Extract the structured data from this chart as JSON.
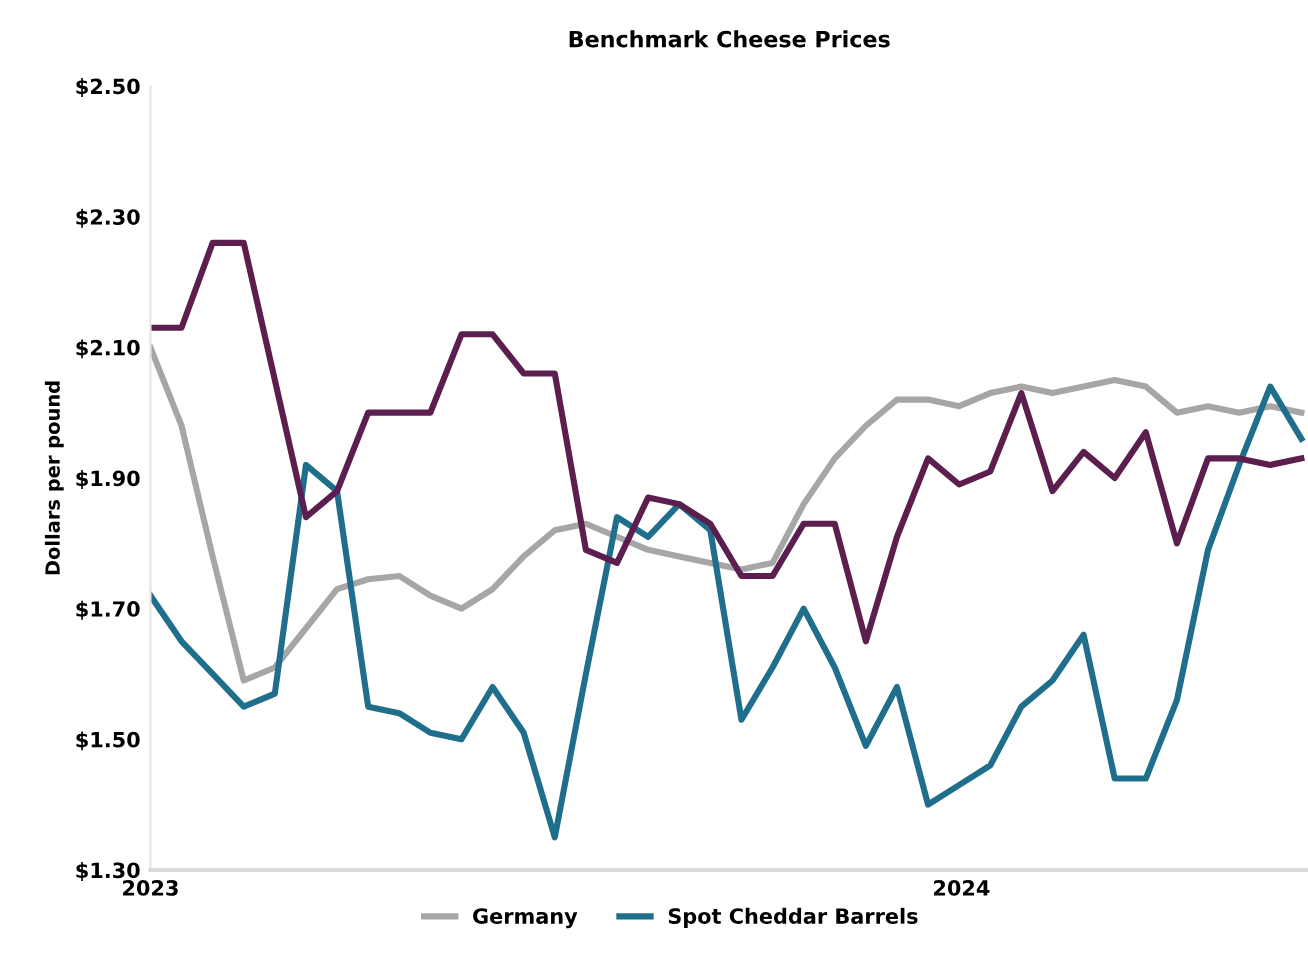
{
  "chart_data": {
    "type": "line",
    "title": "Benchmark Cheese Prices",
    "ylabel": "Dollars per pound",
    "x": [
      "2023-01-01",
      "2023-01-15",
      "2023-01-29",
      "2023-02-12",
      "2023-02-26",
      "2023-03-12",
      "2023-03-26",
      "2023-04-09",
      "2023-04-23",
      "2023-05-07",
      "2023-05-21",
      "2023-06-04",
      "2023-06-18",
      "2023-07-02",
      "2023-07-16",
      "2023-07-30",
      "2023-08-13",
      "2023-08-27",
      "2023-09-10",
      "2023-09-24",
      "2023-10-08",
      "2023-10-22",
      "2023-11-05",
      "2023-11-19",
      "2023-12-03",
      "2023-12-17",
      "2023-12-31",
      "2024-01-14",
      "2024-01-28",
      "2024-02-11",
      "2024-02-25",
      "2024-03-10",
      "2024-03-24",
      "2024-04-07",
      "2024-04-21",
      "2024-05-05",
      "2024-05-19",
      "2024-06-02"
    ],
    "series": [
      {
        "name": "Germany",
        "color": "#a6a6a6",
        "values": [
          2.1,
          1.98,
          1.78,
          1.59,
          1.61,
          1.67,
          1.73,
          1.745,
          1.75,
          1.72,
          1.7,
          1.73,
          1.78,
          1.82,
          1.83,
          1.81,
          1.79,
          1.78,
          1.77,
          1.76,
          1.77,
          1.86,
          1.93,
          1.98,
          2.02,
          2.02,
          2.01,
          2.03,
          2.04,
          2.03,
          2.04,
          2.05,
          2.04,
          2.0,
          2.01,
          2.0,
          2.01,
          2.0
        ]
      },
      {
        "name": "Spot Cheddar Barrels",
        "color": "#1f6e8c",
        "values": [
          1.72,
          1.65,
          1.6,
          1.55,
          1.57,
          1.92,
          1.88,
          1.55,
          1.54,
          1.51,
          1.5,
          1.58,
          1.51,
          1.35,
          1.6,
          1.84,
          1.81,
          1.86,
          1.82,
          1.53,
          1.61,
          1.7,
          1.61,
          1.49,
          1.58,
          1.4,
          1.43,
          1.46,
          1.55,
          1.59,
          1.66,
          1.44,
          1.44,
          1.56,
          1.79,
          1.92,
          2.04,
          1.96
        ]
      },
      {
        "color": "#5b1e4e",
        "values": [
          2.13,
          2.13,
          2.26,
          2.26,
          2.05,
          1.84,
          1.88,
          2.0,
          2.0,
          2.0,
          2.12,
          2.12,
          2.06,
          2.06,
          1.79,
          1.77,
          1.87,
          1.86,
          1.83,
          1.75,
          1.75,
          1.83,
          1.83,
          1.65,
          1.81,
          1.93,
          1.89,
          1.91,
          2.03,
          1.88,
          1.94,
          1.9,
          1.97,
          1.8,
          1.93,
          1.93,
          1.92,
          1.93
        ]
      }
    ],
    "xlim": [
      "2023-01-01",
      "2024-06-05"
    ],
    "xticks": [
      {
        "value": "2023-01-01",
        "label": "2023"
      },
      {
        "value": "2024-01-01",
        "label": "2024"
      }
    ],
    "ylim": [
      1.3,
      2.5
    ],
    "yticks": [
      {
        "value": 1.3,
        "label": "$1.30"
      },
      {
        "value": 1.5,
        "label": "$1.50"
      },
      {
        "value": 1.7,
        "label": "$1.70"
      },
      {
        "value": 1.9,
        "label": "$1.90"
      },
      {
        "value": 2.1,
        "label": "$2.10"
      },
      {
        "value": 2.3,
        "label": "$2.30"
      },
      {
        "value": 2.5,
        "label": "$2.50"
      }
    ],
    "grid": false,
    "legend": "bottom",
    "line_style": "solid"
  }
}
